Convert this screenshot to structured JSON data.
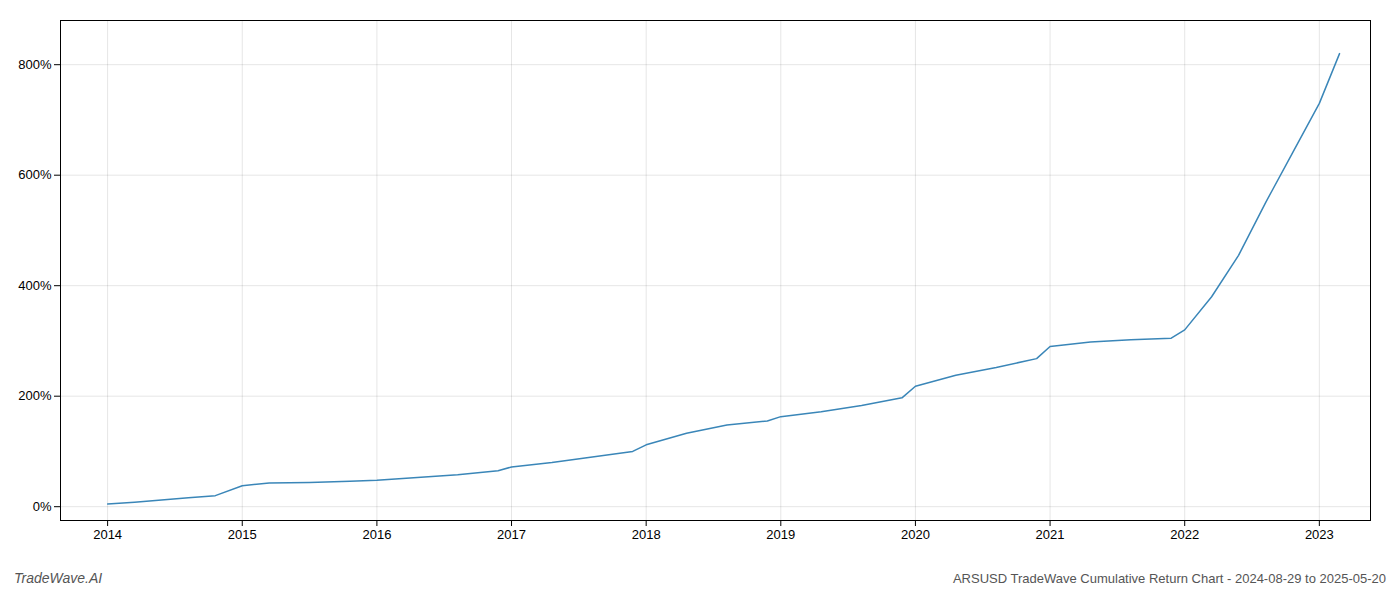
{
  "chart_data": {
    "type": "line",
    "title": "ARSUSD TradeWave Cumulative Return Chart - 2024-08-29 to 2025-05-20",
    "annotations": [
      "TradeWave.AI"
    ],
    "x": [
      2014.0,
      2014.2,
      2014.4,
      2014.6,
      2014.8,
      2015.0,
      2015.2,
      2015.5,
      2015.8,
      2016.0,
      2016.3,
      2016.6,
      2016.9,
      2017.0,
      2017.3,
      2017.6,
      2017.9,
      2018.0,
      2018.3,
      2018.6,
      2018.9,
      2019.0,
      2019.3,
      2019.6,
      2019.9,
      2020.0,
      2020.3,
      2020.6,
      2020.9,
      2021.0,
      2021.3,
      2021.6,
      2021.9,
      2022.0,
      2022.2,
      2022.4,
      2022.6,
      2022.8,
      2023.0,
      2023.15
    ],
    "values": [
      5,
      8,
      12,
      16,
      20,
      38,
      43,
      44,
      46,
      48,
      53,
      58,
      65,
      72,
      80,
      90,
      100,
      112,
      133,
      148,
      155,
      163,
      172,
      183,
      197,
      218,
      238,
      252,
      268,
      290,
      298,
      302,
      305,
      320,
      380,
      455,
      550,
      640,
      730,
      820
    ],
    "color": "#3a86b8",
    "xlim": [
      2013.65,
      2023.38
    ],
    "xticks": [
      2014,
      2015,
      2016,
      2017,
      2018,
      2019,
      2020,
      2021,
      2022,
      2023
    ],
    "ylim": [
      -25,
      880
    ],
    "yticks": [
      {
        "value": 0,
        "label": "0%"
      },
      {
        "value": 200,
        "label": "200%"
      },
      {
        "value": 400,
        "label": "400%"
      },
      {
        "value": 600,
        "label": "600%"
      },
      {
        "value": 800,
        "label": "800%"
      }
    ],
    "grid": true
  }
}
